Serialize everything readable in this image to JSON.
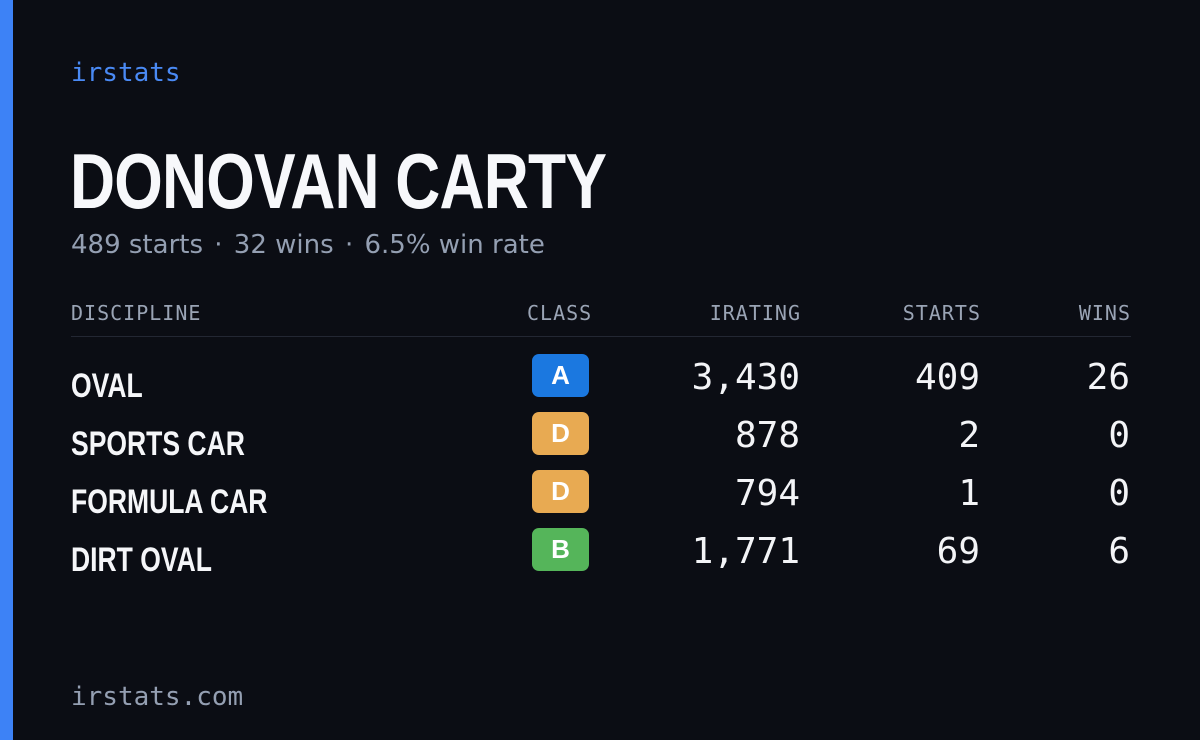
{
  "colors": {
    "background": "#0b0d14",
    "accent": "#3d82f6",
    "brand_text": "#4a8af5"
  },
  "brand": "irstats",
  "driver": {
    "name": "DONOVAN CARTY",
    "starts_text": "489 starts",
    "wins_text": "32 wins",
    "win_rate_text": "6.5% win rate",
    "separator": "·"
  },
  "table": {
    "headers": {
      "discipline": "DISCIPLINE",
      "class": "CLASS",
      "irating": "IRATING",
      "starts": "STARTS",
      "wins": "WINS"
    },
    "rows": [
      {
        "discipline": "OVAL",
        "class": "A",
        "class_color": "#1b78e0",
        "irating": "3,430",
        "starts": "409",
        "wins": "26"
      },
      {
        "discipline": "SPORTS CAR",
        "class": "D",
        "class_color": "#e8aa52",
        "irating": "878",
        "starts": "2",
        "wins": "0"
      },
      {
        "discipline": "FORMULA CAR",
        "class": "D",
        "class_color": "#e8aa52",
        "irating": "794",
        "starts": "1",
        "wins": "0"
      },
      {
        "discipline": "DIRT OVAL",
        "class": "B",
        "class_color": "#55b55a",
        "irating": "1,771",
        "starts": "69",
        "wins": "6"
      }
    ]
  },
  "footer": "irstats.com"
}
